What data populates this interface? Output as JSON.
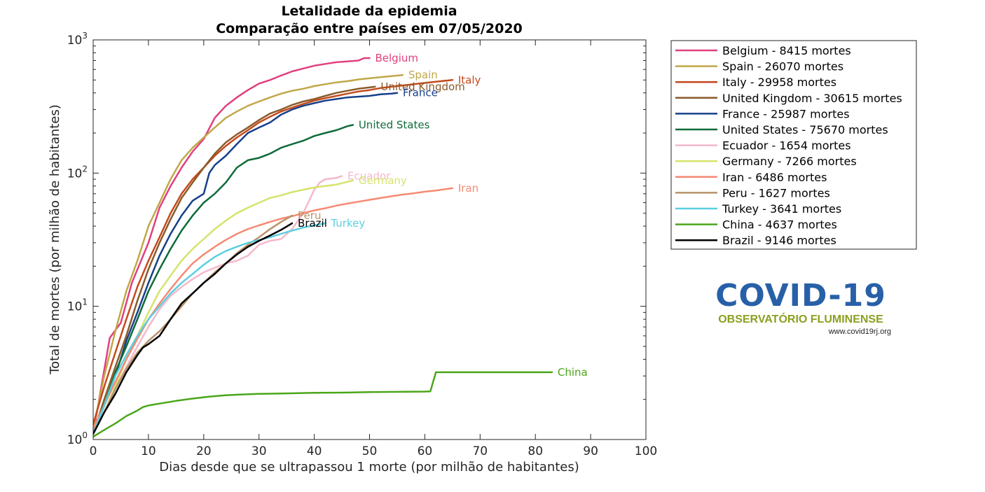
{
  "chart_data": {
    "type": "line",
    "title": "Letalidade da epidemia",
    "subtitle": "Comparação entre países em 07/05/2020",
    "xlabel": "Dias desde que se ultrapassou 1 morte (por milhão de habitantes)",
    "ylabel": "Total de mortes (por milhão de habitantes)",
    "xlim": [
      0,
      100
    ],
    "ylim": [
      1,
      1000
    ],
    "yscale": "log",
    "xticks": [
      "0",
      "10",
      "20",
      "30",
      "40",
      "50",
      "60",
      "70",
      "80",
      "90",
      "100"
    ],
    "yticks": [
      {
        "base": "10",
        "exp": "0"
      },
      {
        "base": "10",
        "exp": "1"
      },
      {
        "base": "10",
        "exp": "2"
      },
      {
        "base": "10",
        "exp": "3"
      }
    ],
    "legend_position": "outside-right",
    "series": [
      {
        "name": "Belgium",
        "legend": "Belgium - 8415 mortes",
        "color": "#e0407f",
        "x": [
          0,
          3,
          5,
          7,
          10,
          12,
          14,
          16,
          18,
          20,
          22,
          24,
          26,
          28,
          30,
          32,
          34,
          36,
          38,
          40,
          42,
          44,
          46,
          48,
          49,
          50
        ],
        "y": [
          1.1,
          5.8,
          7.5,
          15,
          30,
          55,
          80,
          110,
          145,
          180,
          260,
          320,
          370,
          420,
          470,
          500,
          540,
          580,
          610,
          640,
          660,
          680,
          690,
          700,
          730,
          730
        ]
      },
      {
        "name": "Spain",
        "legend": "Spain - 26070 mortes",
        "color": "#c0a848",
        "x": [
          0,
          2,
          4,
          6,
          8,
          10,
          12,
          14,
          16,
          18,
          20,
          22,
          24,
          26,
          28,
          30,
          32,
          34,
          36,
          38,
          40,
          42,
          44,
          46,
          48,
          50,
          52,
          54,
          56
        ],
        "y": [
          1.2,
          3,
          6.5,
          13,
          22,
          40,
          60,
          90,
          125,
          155,
          185,
          220,
          260,
          290,
          320,
          345,
          370,
          395,
          415,
          430,
          450,
          465,
          480,
          490,
          505,
          515,
          525,
          535,
          545
        ]
      },
      {
        "name": "Italy",
        "legend": "Italy - 29958 mortes",
        "color": "#c44a1c",
        "x": [
          0,
          2,
          4,
          6,
          8,
          10,
          12,
          14,
          16,
          18,
          20,
          22,
          24,
          26,
          28,
          30,
          32,
          34,
          36,
          38,
          40,
          42,
          44,
          46,
          48,
          50,
          52,
          54,
          56,
          58,
          60,
          62,
          64,
          65
        ],
        "y": [
          1.3,
          2.5,
          4.5,
          8,
          14,
          22,
          33,
          50,
          70,
          90,
          110,
          135,
          160,
          185,
          210,
          240,
          265,
          290,
          310,
          330,
          350,
          365,
          380,
          395,
          410,
          420,
          435,
          445,
          455,
          465,
          475,
          485,
          495,
          500
        ]
      },
      {
        "name": "United Kingdom",
        "legend": "United Kingdom - 30615 mortes",
        "color": "#8b5a2b",
        "x": [
          0,
          2,
          4,
          6,
          8,
          10,
          12,
          14,
          16,
          18,
          20,
          22,
          24,
          26,
          28,
          30,
          32,
          34,
          36,
          38,
          40,
          42,
          44,
          46,
          48,
          50,
          51
        ],
        "y": [
          1.1,
          2,
          3.5,
          6,
          11,
          19,
          30,
          45,
          65,
          85,
          110,
          140,
          170,
          195,
          220,
          250,
          280,
          300,
          325,
          345,
          360,
          380,
          400,
          415,
          430,
          440,
          445
        ]
      },
      {
        "name": "France",
        "legend": "France - 25987 mortes",
        "color": "#17408a",
        "x": [
          0,
          2,
          4,
          6,
          8,
          10,
          12,
          14,
          16,
          18,
          20,
          21,
          22,
          24,
          26,
          28,
          30,
          32,
          34,
          36,
          38,
          40,
          42,
          44,
          46,
          48,
          50,
          52,
          54,
          55
        ],
        "y": [
          1.1,
          1.8,
          3,
          5.5,
          9,
          15,
          24,
          35,
          48,
          62,
          70,
          100,
          115,
          135,
          165,
          200,
          220,
          240,
          275,
          300,
          320,
          335,
          350,
          360,
          370,
          375,
          380,
          390,
          395,
          400
        ]
      },
      {
        "name": "United States",
        "legend": "United States - 75670 mortes",
        "color": "#0f6b3a",
        "x": [
          0,
          2,
          4,
          6,
          8,
          10,
          12,
          14,
          16,
          18,
          20,
          22,
          24,
          26,
          28,
          30,
          32,
          34,
          36,
          38,
          40,
          42,
          44,
          46,
          47
        ],
        "y": [
          1.1,
          1.8,
          3.2,
          5,
          8,
          13,
          19,
          27,
          37,
          48,
          60,
          70,
          85,
          110,
          125,
          130,
          140,
          155,
          165,
          175,
          190,
          200,
          210,
          225,
          230
        ]
      },
      {
        "name": "Ecuador",
        "legend": "Ecuador - 1654 mortes",
        "color": "#f4b8cc",
        "x": [
          0,
          2,
          4,
          6,
          8,
          10,
          12,
          14,
          16,
          18,
          20,
          22,
          24,
          26,
          28,
          30,
          32,
          34,
          36,
          38,
          40,
          41,
          42,
          44,
          45
        ],
        "y": [
          1.1,
          1.6,
          2.4,
          3.5,
          5,
          7,
          9.5,
          12,
          14,
          16,
          18,
          19.5,
          21,
          22,
          24,
          29,
          31,
          32,
          38,
          50,
          75,
          85,
          90,
          92,
          95
        ]
      },
      {
        "name": "Germany",
        "legend": "Germany - 7266 mortes",
        "color": "#d6e36c",
        "x": [
          0,
          2,
          4,
          6,
          8,
          10,
          12,
          14,
          16,
          18,
          20,
          22,
          24,
          26,
          28,
          30,
          32,
          34,
          36,
          38,
          40,
          42,
          44,
          46,
          47
        ],
        "y": [
          1.1,
          1.6,
          2.5,
          4,
          6,
          9,
          13,
          17,
          22,
          27,
          32,
          38,
          44,
          50,
          55,
          60,
          65,
          68,
          72,
          75,
          78,
          80,
          82,
          86,
          88
        ]
      },
      {
        "name": "Iran",
        "legend": "Iran - 6486 mortes",
        "color": "#f58a73",
        "x": [
          0,
          2,
          4,
          6,
          8,
          10,
          12,
          14,
          16,
          18,
          20,
          22,
          24,
          26,
          28,
          30,
          32,
          34,
          36,
          38,
          40,
          42,
          44,
          46,
          48,
          50,
          52,
          54,
          56,
          58,
          60,
          62,
          64,
          65
        ],
        "y": [
          1.2,
          1.8,
          2.7,
          4,
          5.7,
          8,
          10.5,
          13.5,
          17,
          21,
          24.5,
          28,
          31.5,
          35,
          38,
          40.5,
          43,
          45.5,
          47.5,
          50,
          52.5,
          54.5,
          57,
          59,
          61,
          63,
          65,
          67,
          69,
          70.5,
          72.5,
          74,
          76,
          77
        ]
      },
      {
        "name": "Peru",
        "legend": "Peru - 1627 mortes",
        "color": "#b8926a",
        "x": [
          0,
          2,
          4,
          6,
          8,
          10,
          12,
          14,
          16,
          18,
          20,
          22,
          24,
          26,
          28,
          30,
          32,
          34,
          36
        ],
        "y": [
          1.1,
          1.6,
          2.4,
          3.4,
          4.5,
          5.5,
          6.5,
          8,
          10,
          12.5,
          15,
          18,
          21,
          25,
          29,
          33,
          38,
          43,
          48
        ]
      },
      {
        "name": "Turkey",
        "legend": "Turkey - 3641 mortes",
        "color": "#5ccfe0",
        "x": [
          0,
          2,
          4,
          6,
          8,
          10,
          12,
          14,
          16,
          18,
          20,
          22,
          24,
          26,
          28,
          30,
          32,
          34,
          36,
          38,
          40,
          42
        ],
        "y": [
          1.1,
          1.8,
          3,
          4.3,
          6,
          8,
          10,
          12.5,
          15,
          17.5,
          20.5,
          23.5,
          26,
          28,
          30,
          31.5,
          33,
          35,
          37,
          39,
          40.5,
          42
        ]
      },
      {
        "name": "China",
        "legend": "China - 4637 mortes",
        "color": "#4aa619",
        "x": [
          0,
          2,
          4,
          6,
          8,
          9,
          10,
          12,
          15,
          18,
          21,
          24,
          27,
          30,
          35,
          40,
          45,
          50,
          55,
          60,
          61,
          62,
          65,
          70,
          75,
          80,
          83
        ],
        "y": [
          1.05,
          1.18,
          1.32,
          1.5,
          1.65,
          1.75,
          1.8,
          1.86,
          1.95,
          2.03,
          2.1,
          2.15,
          2.18,
          2.2,
          2.22,
          2.24,
          2.25,
          2.27,
          2.28,
          2.29,
          2.3,
          3.2,
          3.2,
          3.2,
          3.2,
          3.2,
          3.2
        ]
      },
      {
        "name": "Brazil",
        "legend": "Brazil - 9146 mortes",
        "color": "#000000",
        "x": [
          0,
          2,
          4,
          6,
          8,
          9,
          10,
          12,
          14,
          16,
          18,
          20,
          22,
          24,
          26,
          28,
          30,
          32,
          34,
          36
        ],
        "y": [
          1.1,
          1.6,
          2.2,
          3.2,
          4.3,
          4.9,
          5.2,
          6,
          8,
          10.5,
          12.5,
          15,
          17.5,
          21,
          24.5,
          28,
          31,
          34,
          37.5,
          42
        ]
      }
    ]
  },
  "logo": {
    "title": "COVID-19",
    "subtitle": "OBSERVATÓRIO FLUMINENSE",
    "url": "www.covid19rj.org"
  }
}
